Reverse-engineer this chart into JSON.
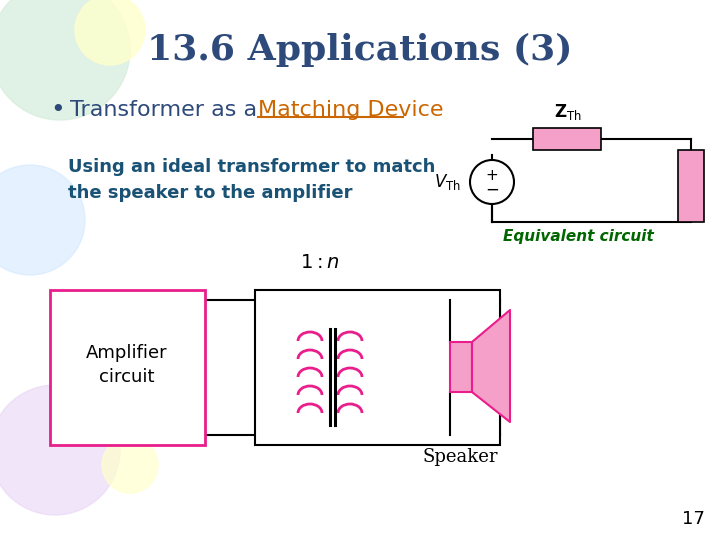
{
  "title": "13.6 Applications (3)",
  "bullet_text_1": "Transformer as a ",
  "bullet_link": "Matching Device",
  "caption_text": "Using an ideal transformer to match\nthe speaker to the amplifier",
  "equiv_label": "Equivalent circuit",
  "slide_number": "17",
  "bg_color": "#ffffff",
  "title_color": "#2E4A7A",
  "bullet_color": "#2E4A7A",
  "link_color": "#CC6600",
  "caption_color": "#1a5276",
  "equiv_color": "#006600",
  "pink": "#E91E8C",
  "light_pink": "#F5A0C8",
  "dark_line": "#333333",
  "decor_green": "#d4edda",
  "decor_yellow": "#ffffcc",
  "decor_blue": "#cce5ff",
  "decor_purple": "#e8d5f5"
}
